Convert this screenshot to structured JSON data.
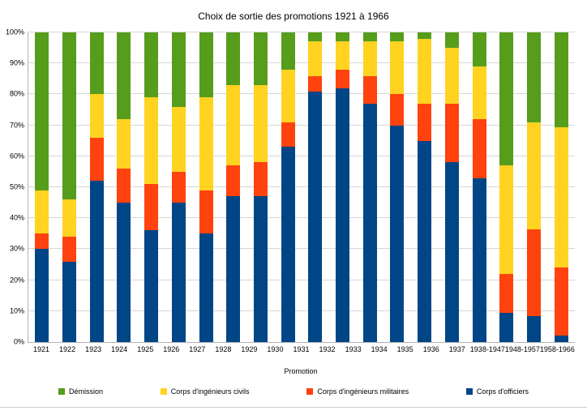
{
  "chart_data": {
    "type": "bar",
    "stacked": true,
    "percent": true,
    "title": "Choix de sortie des promotions 1921 à 1966",
    "xlabel": "Promotion",
    "ylabel": "",
    "ylim": [
      0,
      100
    ],
    "grid": true,
    "legend_position": "bottom",
    "y_ticks": [
      "0%",
      "10%",
      "20%",
      "30%",
      "40%",
      "50%",
      "60%",
      "70%",
      "80%",
      "90%",
      "100%"
    ],
    "categories": [
      "1921",
      "1922",
      "1923",
      "1924",
      "1925",
      "1926",
      "1927",
      "1928",
      "1929",
      "1930",
      "1931",
      "1932",
      "1933",
      "1934",
      "1935",
      "1936",
      "1937",
      "1938-1947",
      "1948-1957",
      "1958-1966"
    ],
    "series": [
      {
        "name": "Corps d'officiers",
        "color": "#004586",
        "values": [
          30,
          26,
          52,
          45,
          36,
          45,
          35,
          47,
          47,
          63,
          81,
          82,
          77,
          70,
          65,
          58,
          53,
          9.5,
          8.5,
          2
        ]
      },
      {
        "name": "Corps d'ingénieurs militaires",
        "color": "#ff420e",
        "values": [
          5,
          8,
          14,
          11,
          15,
          10,
          14,
          10,
          11,
          8,
          5,
          6,
          9,
          10,
          12,
          19,
          19,
          12.5,
          28,
          22
        ]
      },
      {
        "name": "Corps d'ingénieurs civils",
        "color": "#ffd320",
        "values": [
          14,
          12,
          14,
          16,
          28,
          21,
          30,
          26,
          25,
          17,
          11,
          9,
          11,
          17,
          21,
          18,
          17,
          35,
          34.5,
          45.5
        ]
      },
      {
        "name": "Démission",
        "color": "#579d1c",
        "values": [
          51,
          54,
          20,
          28,
          21,
          24,
          21,
          17,
          17,
          12,
          3,
          3,
          3,
          3,
          2,
          5,
          11,
          43,
          29,
          30.5
        ]
      }
    ],
    "legend_order": [
      3,
      2,
      1,
      0
    ]
  }
}
